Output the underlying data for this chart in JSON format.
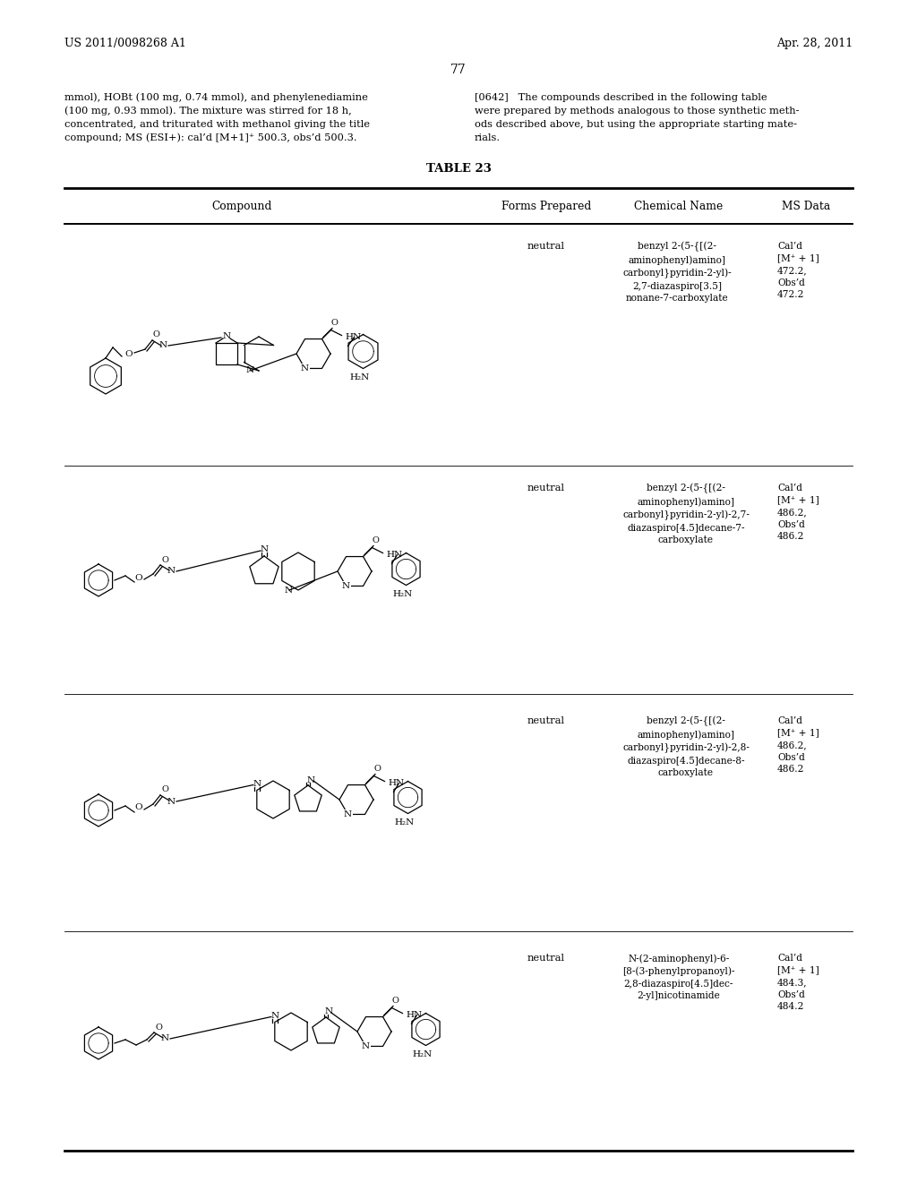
{
  "background_color": "#ffffff",
  "header_left": "US 2011/0098268 A1",
  "header_right": "Apr. 28, 2011",
  "page_number": "77",
  "left_col_text": [
    "mmol), HOBt (100 mg, 0.74 mmol), and phenylenediamine",
    "(100 mg, 0.93 mmol). The mixture was stirred for 18 h,",
    "concentrated, and triturated with methanol giving the title",
    "compound; MS (ESI+): cal’d [M+1]⁺ 500.3, obs’d 500.3."
  ],
  "right_col_text": [
    "[0642]   The compounds described in the following table",
    "were prepared by methods analogous to those synthetic meth-",
    "ods described above, but using the appropriate starting mate-",
    "rials."
  ],
  "table_title": "TABLE 23",
  "col_headers": [
    "Compound",
    "Forms Prepared",
    "Chemical Name",
    "MS Data"
  ],
  "rows": [
    {
      "forms_prepared": "neutral",
      "chemical_name": "benzyl 2-(5-{[(2-\naminophenyl)amino]\ncarbonyl}pyridin-2-yl)-\n2,7-diazaspiro[3.5]\nnonane-7-carboxylate",
      "ms_data": "Cal’d\n[M⁺ + 1]\n472.2,\nObs’d\n472.2"
    },
    {
      "forms_prepared": "neutral",
      "chemical_name": "benzyl 2-(5-{[(2-\naminophenyl)amino]\ncarbonyl}pyridin-2-yl)-2,7-\ndiazaspiro[4.5]decane-7-\ncarboxylate",
      "ms_data": "Cal’d\n[M⁺ + 1]\n486.2,\nObs’d\n486.2"
    },
    {
      "forms_prepared": "neutral",
      "chemical_name": "benzyl 2-(5-{[(2-\naminophenyl)amino]\ncarbonyl}pyridin-2-yl)-2,8-\ndiazaspiro[4.5]decane-8-\ncarboxylate",
      "ms_data": "Cal’d\n[M⁺ + 1]\n486.2,\nObs’d\n486.2"
    },
    {
      "forms_prepared": "neutral",
      "chemical_name": "N-(2-aminophenyl)-6-\n[8-(3-phenylpropanoyl)-\n2,8-diazaspiro[4.5]dec-\n2-yl]nicotinamide",
      "ms_data": "Cal’d\n[M⁺ + 1]\n484.3,\nObs’d\n484.2"
    }
  ]
}
